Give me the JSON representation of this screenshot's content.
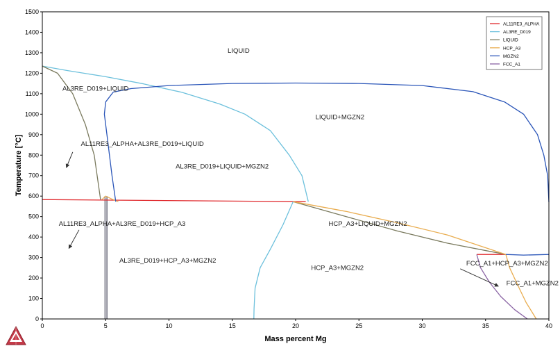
{
  "chart_data": {
    "type": "line",
    "title": "",
    "xlabel": "Mass percent Mg",
    "ylabel": "Temperature [°C]",
    "xlim": [
      0,
      40
    ],
    "ylim": [
      0,
      1500
    ],
    "x_ticks": [
      0,
      5,
      10,
      15,
      20,
      25,
      30,
      35,
      40
    ],
    "y_ticks": [
      0,
      100,
      200,
      300,
      400,
      500,
      600,
      700,
      800,
      900,
      1000,
      1100,
      1200,
      1300,
      1400,
      1500
    ],
    "grid": false,
    "legend_position": "top-right",
    "series": [
      {
        "name": "AL11RE3_ALPHA",
        "color": "#e0282c",
        "segments": [
          [
            [
              0,
              583
            ],
            [
              20.8,
              573
            ]
          ],
          [
            [
              34.3,
              315
            ],
            [
              36.6,
              315
            ]
          ]
        ]
      },
      {
        "name": "AL3RE_D019",
        "color": "#6cc0dc",
        "segments": [
          [
            [
              0,
              1235
            ],
            [
              2,
              1213
            ],
            [
              5,
              1183
            ],
            [
              8,
              1148
            ],
            [
              11,
              1107
            ],
            [
              14,
              1050
            ],
            [
              16,
              1000
            ],
            [
              18,
              920
            ],
            [
              19.5,
              800
            ],
            [
              20.5,
              700
            ],
            [
              21,
              573
            ]
          ],
          [
            [
              16.7,
              0
            ],
            [
              16.72,
              50
            ],
            [
              16.8,
              150
            ],
            [
              17.2,
              250
            ],
            [
              18,
              340
            ],
            [
              19,
              460
            ],
            [
              19.8,
              573
            ]
          ]
        ]
      },
      {
        "name": "LIQUID",
        "color": "#7a7a5e",
        "segments": [
          [
            [
              0,
              1235
            ],
            [
              1.2,
              1200
            ],
            [
              2.4,
              1100
            ],
            [
              3.4,
              950
            ],
            [
              4.1,
              800
            ],
            [
              4.6,
              583
            ]
          ],
          [
            [
              19.8,
              573
            ],
            [
              24,
              500
            ],
            [
              28,
              430
            ],
            [
              32,
              370
            ],
            [
              36.6,
              315
            ]
          ]
        ]
      },
      {
        "name": "HCP_A3",
        "color": "#e9ad50",
        "segments": [
          [
            [
              4.7,
              583
            ],
            [
              5,
              600
            ],
            [
              5.5,
              585
            ],
            [
              6,
              573
            ]
          ],
          [
            [
              19.8,
              573
            ],
            [
              24,
              525
            ],
            [
              28,
              470
            ],
            [
              32,
              410
            ],
            [
              36.6,
              315
            ]
          ],
          [
            [
              36.6,
              315
            ],
            [
              36.9,
              250
            ],
            [
              37.5,
              170
            ],
            [
              38.2,
              80
            ],
            [
              39,
              0
            ]
          ]
        ]
      },
      {
        "name": "MGZN2",
        "color": "#2a55b8",
        "segments": [
          [
            [
              5.8,
              573
            ],
            [
              5.5,
              700
            ],
            [
              5.1,
              900
            ],
            [
              4.9,
              1000
            ],
            [
              5,
              1060
            ],
            [
              5.6,
              1108
            ],
            [
              7,
              1125
            ],
            [
              10,
              1140
            ],
            [
              15,
              1150
            ],
            [
              20,
              1152
            ],
            [
              25,
              1150
            ],
            [
              30,
              1140
            ],
            [
              34,
              1110
            ],
            [
              36.5,
              1060
            ],
            [
              38,
              1000
            ],
            [
              39.1,
              900
            ],
            [
              39.6,
              800
            ],
            [
              39.9,
              700
            ],
            [
              40,
              570
            ]
          ],
          [
            [
              36.6,
              315
            ],
            [
              38,
              312
            ],
            [
              40,
              315
            ]
          ]
        ]
      },
      {
        "name": "FCC_A1",
        "color": "#8a64a4",
        "segments": [
          [
            [
              34.3,
              315
            ],
            [
              34.6,
              250
            ],
            [
              35.3,
              180
            ],
            [
              36.2,
              110
            ],
            [
              37.3,
              45
            ],
            [
              38.3,
              0
            ]
          ]
        ]
      }
    ],
    "boundary_lines": [
      {
        "color": "#48485c",
        "points": [
          [
            4.95,
            600
          ],
          [
            4.95,
            0
          ]
        ]
      },
      {
        "color": "#48485c",
        "points": [
          [
            5.1,
            600
          ],
          [
            5.1,
            0
          ]
        ]
      }
    ],
    "region_labels": [
      {
        "text": "LIQUID",
        "at": [
          15.5,
          1300
        ]
      },
      {
        "text": "AL3RE_D019+LIQUID",
        "at": [
          4.2,
          1115
        ]
      },
      {
        "text": "LIQUID+MGZN2",
        "at": [
          23.5,
          975
        ]
      },
      {
        "text": "AL11RE3_ALPHA+AL3RE_D019+LIQUID",
        "at": [
          7.9,
          845
        ]
      },
      {
        "text": "AL3RE_D019+LIQUID+MGZN2",
        "at": [
          14.2,
          735
        ]
      },
      {
        "text": "AL11RE3_ALPHA+AL3RE_D019+HCP_A3",
        "at": [
          6.3,
          455
        ]
      },
      {
        "text": "HCP_A3+LIQUID+MGZN2",
        "at": [
          25.7,
          455
        ]
      },
      {
        "text": "AL3RE_D019+HCP_A3+MGZN2",
        "at": [
          9.9,
          275
        ]
      },
      {
        "text": "HCP_A3+MGZN2",
        "at": [
          23.3,
          240
        ]
      },
      {
        "text": "FCC_A1+HCP_A3+MGZN2",
        "at": [
          36.7,
          262
        ]
      },
      {
        "text": "FCC_A1+MGZN2",
        "at": [
          38.7,
          165
        ]
      }
    ],
    "annotation_arrows": [
      {
        "from": [
          2.4,
          815
        ],
        "to": [
          1.9,
          740
        ]
      },
      {
        "from": [
          2.9,
          435
        ],
        "to": [
          2.1,
          345
        ]
      },
      {
        "from": [
          33,
          245
        ],
        "to": [
          36,
          160
        ]
      }
    ]
  }
}
